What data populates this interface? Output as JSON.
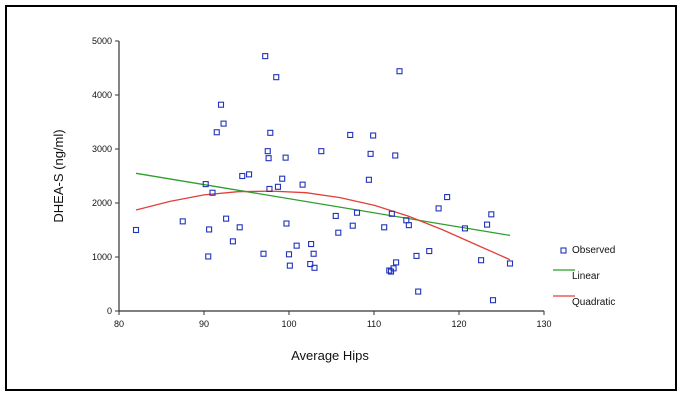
{
  "chart_data": {
    "type": "scatter",
    "xlabel": "Average Hips",
    "ylabel": "DHEA-S (ng/ml)",
    "xlim": [
      80,
      130
    ],
    "ylim": [
      0,
      5000
    ],
    "x_ticks": [
      "80",
      "90",
      "100",
      "110",
      "120",
      "130"
    ],
    "y_ticks": [
      "0",
      "1000",
      "2000",
      "3000",
      "4000",
      "5000"
    ],
    "legend_position": "right",
    "series": [
      {
        "name": "Observed",
        "kind": "points",
        "color": "#2233bb",
        "points": [
          [
            82,
            1500
          ],
          [
            87.5,
            1660
          ],
          [
            90.2,
            2350
          ],
          [
            90.5,
            1010
          ],
          [
            90.6,
            1510
          ],
          [
            91,
            2190
          ],
          [
            91.5,
            3310
          ],
          [
            92,
            3820
          ],
          [
            92.3,
            3470
          ],
          [
            92.6,
            1710
          ],
          [
            93.4,
            1290
          ],
          [
            94.2,
            1550
          ],
          [
            94.5,
            2500
          ],
          [
            95.3,
            2530
          ],
          [
            97,
            1060
          ],
          [
            97.2,
            4720
          ],
          [
            97.5,
            2960
          ],
          [
            97.6,
            2830
          ],
          [
            97.7,
            2260
          ],
          [
            97.8,
            3300
          ],
          [
            98.5,
            4330
          ],
          [
            98.7,
            2300
          ],
          [
            99.2,
            2450
          ],
          [
            99.6,
            2840
          ],
          [
            99.7,
            1620
          ],
          [
            100,
            1050
          ],
          [
            100.1,
            840
          ],
          [
            100.9,
            1210
          ],
          [
            101.6,
            2340
          ],
          [
            102.5,
            870
          ],
          [
            102.6,
            1240
          ],
          [
            102.9,
            1060
          ],
          [
            103,
            800
          ],
          [
            103.8,
            2960
          ],
          [
            105.5,
            1760
          ],
          [
            105.8,
            1450
          ],
          [
            107.2,
            3260
          ],
          [
            107.5,
            1580
          ],
          [
            108,
            1820
          ],
          [
            109.4,
            2430
          ],
          [
            109.6,
            2910
          ],
          [
            109.9,
            3250
          ],
          [
            111.2,
            1550
          ],
          [
            111.8,
            750
          ],
          [
            112,
            730
          ],
          [
            112.1,
            1800
          ],
          [
            112.3,
            790
          ],
          [
            112.5,
            2880
          ],
          [
            112.6,
            900
          ],
          [
            113,
            4440
          ],
          [
            113.8,
            1680
          ],
          [
            114.1,
            1590
          ],
          [
            115,
            1020
          ],
          [
            115.2,
            360
          ],
          [
            116.5,
            1110
          ],
          [
            117.6,
            1900
          ],
          [
            118.6,
            2110
          ],
          [
            120.7,
            1530
          ],
          [
            122.6,
            940
          ],
          [
            123.3,
            1600
          ],
          [
            123.8,
            1790
          ],
          [
            124,
            200
          ],
          [
            126,
            880
          ]
        ]
      },
      {
        "name": "Linear",
        "kind": "line",
        "color": "#2aa02a",
        "points": [
          [
            82,
            2550
          ],
          [
            126,
            1400
          ]
        ]
      },
      {
        "name": "Quadratic",
        "kind": "curve",
        "color": "#e0403a",
        "points": [
          [
            82,
            1870
          ],
          [
            86,
            2030
          ],
          [
            90,
            2150
          ],
          [
            94,
            2210
          ],
          [
            98,
            2220
          ],
          [
            102,
            2190
          ],
          [
            106,
            2100
          ],
          [
            110,
            1960
          ],
          [
            114,
            1760
          ],
          [
            118,
            1510
          ],
          [
            122,
            1230
          ],
          [
            126,
            950
          ]
        ]
      }
    ]
  }
}
